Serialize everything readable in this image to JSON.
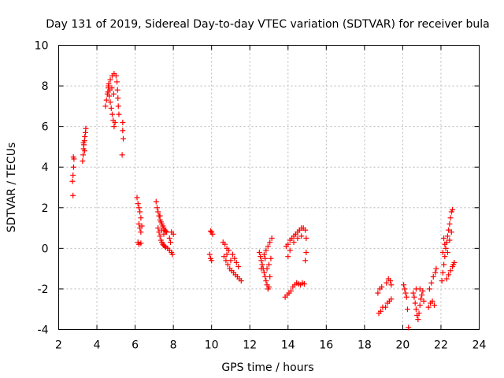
{
  "chart_data": {
    "type": "scatter",
    "title": "Day 131 of 2019, Sidereal Day-to-day VTEC variation (SDTVAR) for receiver bula",
    "xlabel": "GPS time / hours",
    "ylabel": "SDTVAR / TECUs",
    "xlim": [
      2,
      24
    ],
    "ylim": [
      -4,
      10
    ],
    "xticks": [
      2,
      4,
      6,
      8,
      10,
      12,
      14,
      16,
      18,
      20,
      22,
      24
    ],
    "yticks": [
      -4,
      -2,
      0,
      2,
      4,
      6,
      8,
      10
    ],
    "grid": true,
    "marker": "+",
    "color": "#ff0000",
    "series": [
      {
        "name": "SDTVAR",
        "points": [
          [
            2.75,
            2.6
          ],
          [
            2.72,
            3.3
          ],
          [
            2.75,
            3.6
          ],
          [
            2.78,
            4.0
          ],
          [
            2.8,
            4.4
          ],
          [
            2.77,
            4.5
          ],
          [
            3.25,
            4.3
          ],
          [
            3.28,
            4.6
          ],
          [
            3.3,
            4.9
          ],
          [
            3.32,
            5.1
          ],
          [
            3.35,
            5.3
          ],
          [
            3.37,
            5.5
          ],
          [
            3.4,
            5.7
          ],
          [
            3.42,
            5.9
          ],
          [
            3.3,
            5.2
          ],
          [
            3.36,
            4.8
          ],
          [
            4.45,
            7.0
          ],
          [
            4.5,
            7.3
          ],
          [
            4.55,
            7.6
          ],
          [
            4.6,
            7.9
          ],
          [
            4.62,
            8.1
          ],
          [
            4.65,
            7.5
          ],
          [
            4.7,
            7.2
          ],
          [
            4.75,
            6.9
          ],
          [
            4.8,
            6.6
          ],
          [
            4.85,
            6.3
          ],
          [
            4.9,
            6.0
          ],
          [
            4.95,
            6.2
          ],
          [
            4.6,
            8.0
          ],
          [
            4.7,
            8.3
          ],
          [
            4.8,
            8.5
          ],
          [
            4.9,
            8.6
          ],
          [
            5.0,
            8.5
          ],
          [
            5.05,
            8.2
          ],
          [
            5.08,
            7.8
          ],
          [
            5.1,
            7.4
          ],
          [
            5.12,
            7.0
          ],
          [
            5.15,
            6.6
          ],
          [
            4.58,
            7.7
          ],
          [
            4.68,
            7.8
          ],
          [
            4.78,
            7.9
          ],
          [
            4.88,
            7.6
          ],
          [
            5.35,
            6.2
          ],
          [
            5.35,
            5.8
          ],
          [
            5.38,
            5.4
          ],
          [
            5.32,
            4.6
          ],
          [
            6.1,
            2.5
          ],
          [
            6.15,
            2.2
          ],
          [
            6.2,
            2.0
          ],
          [
            6.25,
            1.8
          ],
          [
            6.3,
            1.5
          ],
          [
            6.2,
            1.2
          ],
          [
            6.25,
            1.0
          ],
          [
            6.3,
            0.8
          ],
          [
            6.15,
            0.3
          ],
          [
            6.2,
            0.2
          ],
          [
            6.3,
            0.25
          ],
          [
            6.35,
            1.1
          ],
          [
            7.1,
            2.3
          ],
          [
            7.15,
            2.0
          ],
          [
            7.2,
            1.8
          ],
          [
            7.25,
            1.6
          ],
          [
            7.3,
            1.4
          ],
          [
            7.35,
            1.3
          ],
          [
            7.4,
            1.2
          ],
          [
            7.45,
            1.1
          ],
          [
            7.5,
            1.0
          ],
          [
            7.55,
            0.9
          ],
          [
            7.6,
            0.85
          ],
          [
            7.65,
            0.8
          ],
          [
            7.2,
            1.0
          ],
          [
            7.25,
            0.8
          ],
          [
            7.3,
            0.6
          ],
          [
            7.35,
            0.4
          ],
          [
            7.4,
            0.3
          ],
          [
            7.45,
            0.2
          ],
          [
            7.5,
            0.15
          ],
          [
            7.55,
            0.1
          ],
          [
            7.6,
            0.05
          ],
          [
            7.7,
            0.0
          ],
          [
            7.8,
            -0.1
          ],
          [
            7.9,
            -0.2
          ],
          [
            7.95,
            -0.3
          ],
          [
            7.8,
            0.5
          ],
          [
            7.85,
            0.3
          ],
          [
            7.9,
            0.8
          ],
          [
            8.0,
            0.7
          ],
          [
            7.3,
            1.6
          ],
          [
            7.4,
            0.9
          ],
          [
            7.5,
            0.7
          ],
          [
            9.95,
            0.85
          ],
          [
            10.0,
            0.8
          ],
          [
            10.05,
            0.7
          ],
          [
            9.9,
            -0.3
          ],
          [
            9.95,
            -0.5
          ],
          [
            10.0,
            -0.6
          ],
          [
            10.6,
            0.3
          ],
          [
            10.7,
            0.2
          ],
          [
            10.8,
            0.0
          ],
          [
            10.9,
            -0.1
          ],
          [
            10.65,
            -0.4
          ],
          [
            10.75,
            -0.6
          ],
          [
            10.85,
            -0.8
          ],
          [
            10.95,
            -1.0
          ],
          [
            11.05,
            -1.1
          ],
          [
            11.15,
            -1.2
          ],
          [
            11.25,
            -1.3
          ],
          [
            11.35,
            -1.4
          ],
          [
            11.45,
            -1.5
          ],
          [
            11.55,
            -1.6
          ],
          [
            11.1,
            -0.3
          ],
          [
            11.2,
            -0.5
          ],
          [
            11.3,
            -0.7
          ],
          [
            11.4,
            -0.9
          ],
          [
            10.8,
            -0.3
          ],
          [
            11.0,
            -0.6
          ],
          [
            12.5,
            -0.2
          ],
          [
            12.55,
            -0.4
          ],
          [
            12.6,
            -0.6
          ],
          [
            12.65,
            -0.8
          ],
          [
            12.7,
            -1.0
          ],
          [
            12.75,
            -1.2
          ],
          [
            12.8,
            -1.4
          ],
          [
            12.85,
            -1.6
          ],
          [
            12.9,
            -1.8
          ],
          [
            12.95,
            -2.0
          ],
          [
            13.0,
            -1.9
          ],
          [
            12.75,
            -0.3
          ],
          [
            12.85,
            -0.1
          ],
          [
            12.95,
            0.1
          ],
          [
            13.05,
            0.3
          ],
          [
            13.15,
            0.5
          ],
          [
            13.1,
            -0.5
          ],
          [
            13.0,
            -0.8
          ],
          [
            12.9,
            -1.0
          ],
          [
            13.05,
            -1.4
          ],
          [
            12.6,
            -1.0
          ],
          [
            12.8,
            -0.5
          ],
          [
            13.85,
            -2.4
          ],
          [
            13.95,
            -2.3
          ],
          [
            14.05,
            -2.2
          ],
          [
            14.15,
            -2.1
          ],
          [
            14.25,
            -1.9
          ],
          [
            14.35,
            -1.8
          ],
          [
            14.45,
            -1.7
          ],
          [
            14.55,
            -1.75
          ],
          [
            14.65,
            -1.8
          ],
          [
            14.75,
            -1.7
          ],
          [
            14.85,
            -1.75
          ],
          [
            13.9,
            0.1
          ],
          [
            14.0,
            0.2
          ],
          [
            14.1,
            0.4
          ],
          [
            14.2,
            0.5
          ],
          [
            14.3,
            0.6
          ],
          [
            14.4,
            0.7
          ],
          [
            14.5,
            0.8
          ],
          [
            14.6,
            0.9
          ],
          [
            14.7,
            1.0
          ],
          [
            14.8,
            1.0
          ],
          [
            14.9,
            0.9
          ],
          [
            14.95,
            0.5
          ],
          [
            14.95,
            -0.2
          ],
          [
            14.9,
            -0.6
          ],
          [
            14.0,
            -0.4
          ],
          [
            14.1,
            -0.1
          ],
          [
            14.3,
            0.3
          ],
          [
            14.5,
            0.5
          ],
          [
            14.7,
            0.6
          ],
          [
            18.75,
            -3.2
          ],
          [
            18.85,
            -3.1
          ],
          [
            18.95,
            -2.9
          ],
          [
            18.7,
            -2.2
          ],
          [
            18.8,
            -2.0
          ],
          [
            18.9,
            -1.9
          ],
          [
            19.1,
            -2.9
          ],
          [
            19.2,
            -2.7
          ],
          [
            19.3,
            -2.6
          ],
          [
            19.4,
            -2.5
          ],
          [
            19.15,
            -1.7
          ],
          [
            19.25,
            -1.5
          ],
          [
            19.35,
            -1.6
          ],
          [
            19.4,
            -1.8
          ],
          [
            20.05,
            -1.8
          ],
          [
            20.1,
            -2.0
          ],
          [
            20.15,
            -2.2
          ],
          [
            20.2,
            -2.4
          ],
          [
            20.25,
            -3.0
          ],
          [
            20.3,
            -3.9
          ],
          [
            20.55,
            -2.2
          ],
          [
            20.6,
            -2.4
          ],
          [
            20.65,
            -2.7
          ],
          [
            20.7,
            -3.0
          ],
          [
            20.75,
            -3.3
          ],
          [
            20.8,
            -3.5
          ],
          [
            20.85,
            -3.2
          ],
          [
            20.9,
            -2.8
          ],
          [
            20.95,
            -2.5
          ],
          [
            21.0,
            -2.3
          ],
          [
            21.05,
            -2.1
          ],
          [
            21.1,
            -2.6
          ],
          [
            20.7,
            -2.0
          ],
          [
            20.9,
            -2.0
          ],
          [
            21.35,
            -2.9
          ],
          [
            21.45,
            -2.7
          ],
          [
            21.55,
            -2.6
          ],
          [
            21.65,
            -2.8
          ],
          [
            21.4,
            -2.0
          ],
          [
            21.5,
            -1.7
          ],
          [
            21.6,
            -1.4
          ],
          [
            21.7,
            -1.2
          ],
          [
            21.75,
            -1.0
          ],
          [
            22.05,
            -1.6
          ],
          [
            22.1,
            -1.2
          ],
          [
            22.15,
            -0.8
          ],
          [
            22.2,
            -0.4
          ],
          [
            22.25,
            0.0
          ],
          [
            22.3,
            0.3
          ],
          [
            22.35,
            0.6
          ],
          [
            22.4,
            0.9
          ],
          [
            22.45,
            1.2
          ],
          [
            22.5,
            1.5
          ],
          [
            22.55,
            1.8
          ],
          [
            22.6,
            1.9
          ],
          [
            22.1,
            -0.2
          ],
          [
            22.2,
            0.2
          ],
          [
            22.3,
            -1.5
          ],
          [
            22.4,
            -1.3
          ],
          [
            22.5,
            -1.1
          ],
          [
            22.6,
            -0.9
          ],
          [
            22.65,
            -0.8
          ],
          [
            22.7,
            -0.7
          ],
          [
            22.35,
            -0.2
          ],
          [
            22.45,
            0.4
          ],
          [
            22.55,
            0.8
          ],
          [
            22.15,
            0.5
          ]
        ]
      }
    ]
  }
}
